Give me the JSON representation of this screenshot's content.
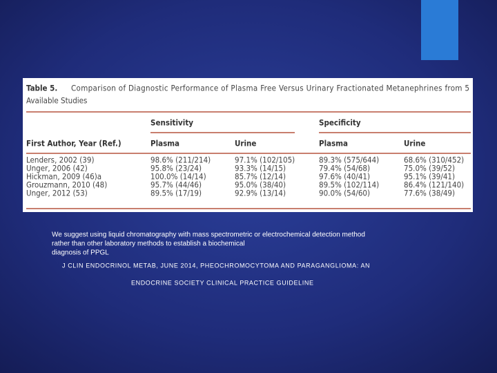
{
  "table": {
    "label": "Table 5.",
    "caption": [
      "Comparison of Diagnostic Performance of Plasma Free Versus Urinary Fractionated Metanephrines from 5",
      "Available Studies"
    ],
    "groups": [
      "Sensitivity",
      "Specificity"
    ],
    "headers": [
      "First Author, Year (Ref.)",
      "Plasma",
      "Urine",
      "Plasma",
      "Urine"
    ],
    "rows": [
      [
        "Lenders, 2002 (39)",
        "98.6% (211/214)",
        "97.1% (102/105)",
        "89.3% (575/644)",
        "68.6% (310/452)"
      ],
      [
        "Unger, 2006 (42)",
        "95.8% (23/24)",
        "93.3% (14/15)",
        "79.4% (54/68)",
        "75.0% (39/52)"
      ],
      [
        "Hickman, 2009 (46)a",
        "100.0% (14/14)",
        "85.7% (12/14)",
        "97.6% (40/41)",
        "95.1% (39/41)"
      ],
      [
        "Grouzmann, 2010 (48)",
        "95.7% (44/46)",
        "95.0% (38/40)",
        "89.5% (102/114)",
        "86.4% (121/140)"
      ],
      [
        "Unger, 2012 (53)",
        "89.5% (17/19)",
        "92.9% (13/14)",
        "90.0% (54/60)",
        "77.6% (38/49)"
      ]
    ]
  },
  "note": [
    "We suggest using liquid chromatography with mass spectrometric or electrochemical detection method",
    "rather than other laboratory methods to establish a biochemical",
    "diagnosis of PPGL"
  ],
  "citation": [
    "J CLIN ENDOCRINOL METAB, JUNE 2014, PHEOCHROMOCYTOMA AND PARAGANGLIOMA: AN",
    "ENDOCRINE SOCIETY CLINICAL PRACTICE GUIDELINE"
  ]
}
